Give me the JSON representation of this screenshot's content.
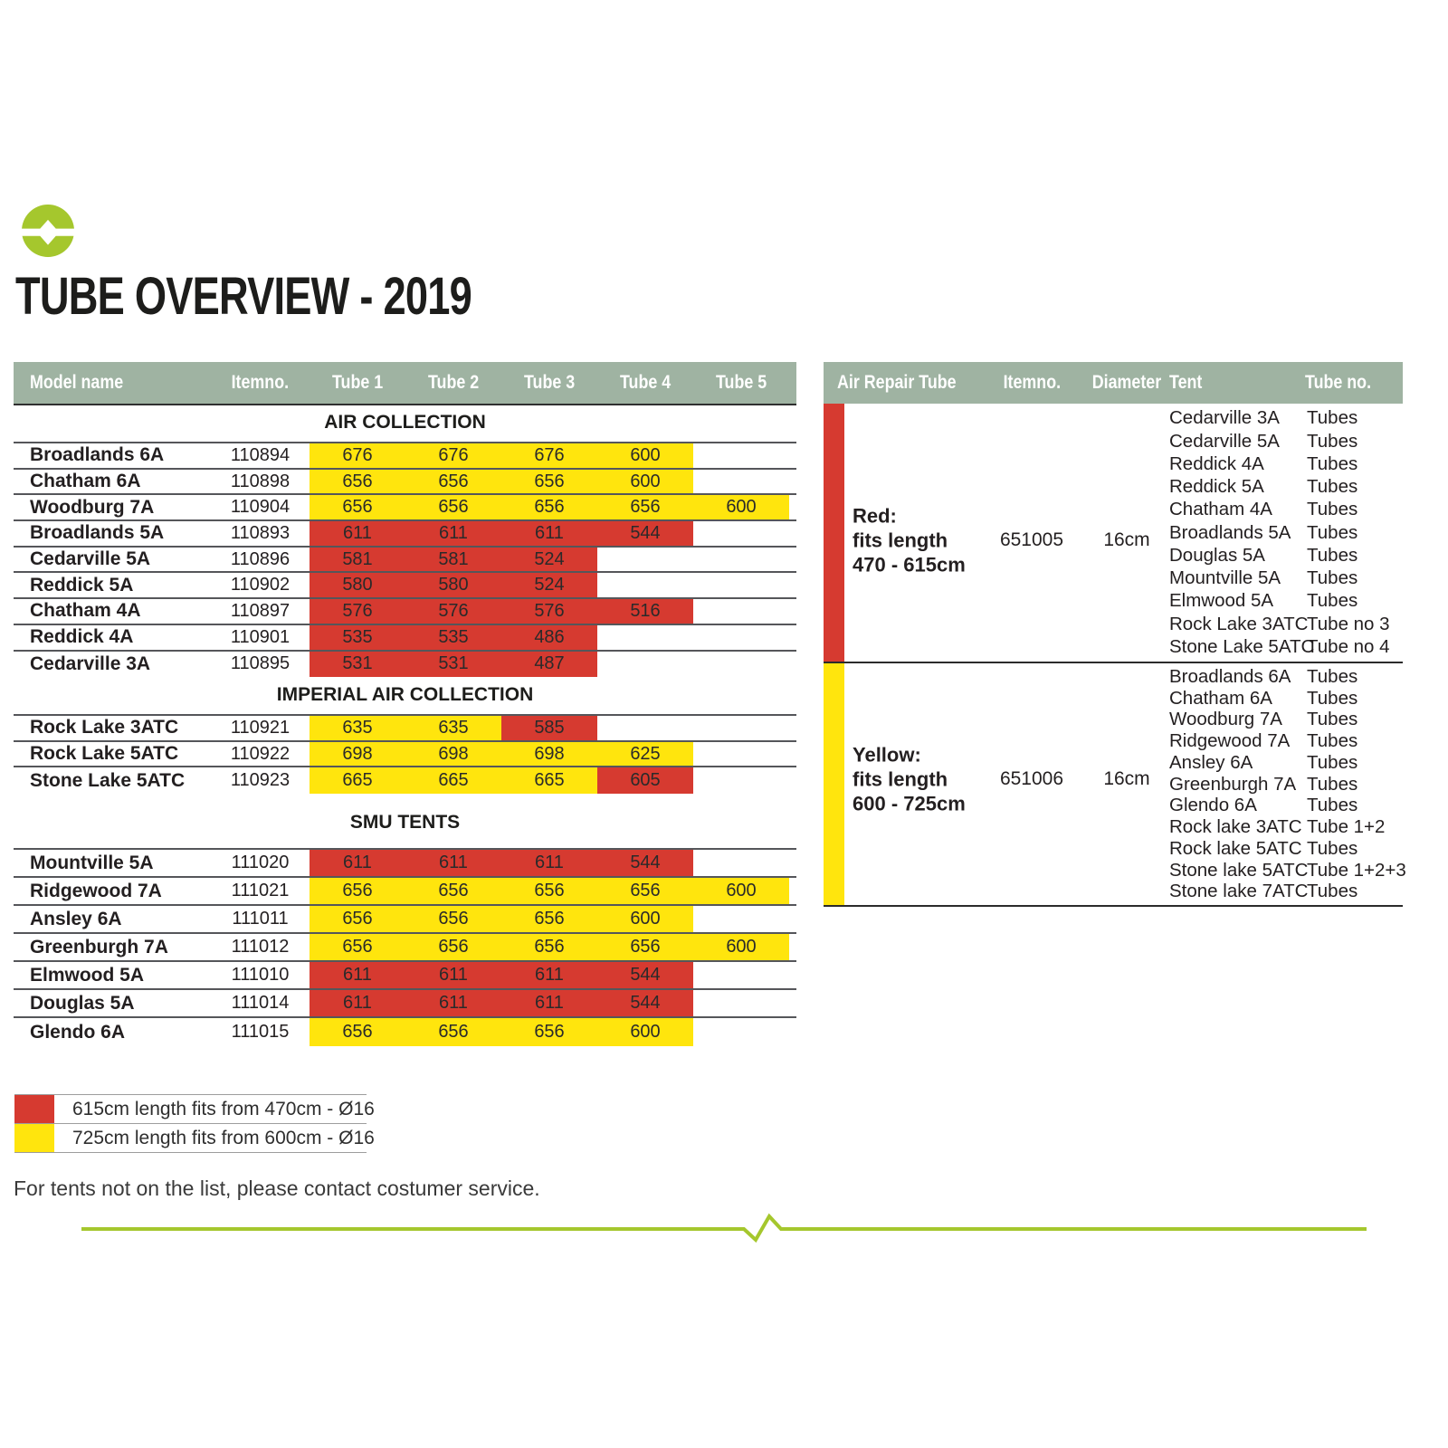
{
  "title": "TUBE OVERVIEW - 2019",
  "logo": {
    "name": "brand-logo"
  },
  "colors": {
    "sage": "#9fb3a2",
    "yellow": "#ffe50d",
    "red": "#d63a30",
    "lime": "#a5c72d",
    "text": "#231f20"
  },
  "left_table": {
    "headers": [
      "Model name",
      "Itemno.",
      "Tube 1",
      "Tube 2",
      "Tube 3",
      "Tube 4",
      "Tube 5"
    ],
    "sections": [
      {
        "name": "AIR COLLECTION",
        "rows": [
          {
            "model": "Broadlands 6A",
            "itemno": "110894",
            "tubes": [
              {
                "value": "676",
                "color": "yellow"
              },
              {
                "value": "676",
                "color": "yellow"
              },
              {
                "value": "676",
                "color": "yellow"
              },
              {
                "value": "600",
                "color": "yellow"
              }
            ]
          },
          {
            "model": "Chatham 6A",
            "itemno": "110898",
            "tubes": [
              {
                "value": "656",
                "color": "yellow"
              },
              {
                "value": "656",
                "color": "yellow"
              },
              {
                "value": "656",
                "color": "yellow"
              },
              {
                "value": "600",
                "color": "yellow"
              }
            ]
          },
          {
            "model": "Woodburg 7A",
            "itemno": "110904",
            "tubes": [
              {
                "value": "656",
                "color": "yellow"
              },
              {
                "value": "656",
                "color": "yellow"
              },
              {
                "value": "656",
                "color": "yellow"
              },
              {
                "value": "656",
                "color": "yellow"
              },
              {
                "value": "600",
                "color": "yellow"
              }
            ]
          },
          {
            "model": "Broadlands 5A",
            "itemno": "110893",
            "tubes": [
              {
                "value": "611",
                "color": "red"
              },
              {
                "value": "611",
                "color": "red"
              },
              {
                "value": "611",
                "color": "red"
              },
              {
                "value": "544",
                "color": "red"
              }
            ]
          },
          {
            "model": "Cedarville 5A",
            "itemno": "110896",
            "tubes": [
              {
                "value": "581",
                "color": "red"
              },
              {
                "value": "581",
                "color": "red"
              },
              {
                "value": "524",
                "color": "red"
              }
            ]
          },
          {
            "model": "Reddick 5A",
            "itemno": "110902",
            "tubes": [
              {
                "value": "580",
                "color": "red"
              },
              {
                "value": "580",
                "color": "red"
              },
              {
                "value": "524",
                "color": "red"
              }
            ]
          },
          {
            "model": "Chatham 4A",
            "itemno": "110897",
            "tubes": [
              {
                "value": "576",
                "color": "red"
              },
              {
                "value": "576",
                "color": "red"
              },
              {
                "value": "576",
                "color": "red"
              },
              {
                "value": "516",
                "color": "red"
              }
            ]
          },
          {
            "model": "Reddick 4A",
            "itemno": "110901",
            "tubes": [
              {
                "value": "535",
                "color": "red"
              },
              {
                "value": "535",
                "color": "red"
              },
              {
                "value": "486",
                "color": "red"
              }
            ]
          },
          {
            "model": "Cedarville 3A",
            "itemno": "110895",
            "tubes": [
              {
                "value": "531",
                "color": "red"
              },
              {
                "value": "531",
                "color": "red"
              },
              {
                "value": "487",
                "color": "red"
              }
            ]
          }
        ]
      },
      {
        "name": "IMPERIAL AIR COLLECTION",
        "rows": [
          {
            "model": "Rock Lake 3ATC",
            "itemno": "110921",
            "tubes": [
              {
                "value": "635",
                "color": "yellow"
              },
              {
                "value": "635",
                "color": "yellow"
              },
              {
                "value": "585",
                "color": "red"
              }
            ]
          },
          {
            "model": "Rock Lake 5ATC",
            "itemno": "110922",
            "tubes": [
              {
                "value": "698",
                "color": "yellow"
              },
              {
                "value": "698",
                "color": "yellow"
              },
              {
                "value": "698",
                "color": "yellow"
              },
              {
                "value": "625",
                "color": "yellow"
              }
            ]
          },
          {
            "model": "Stone Lake 5ATC",
            "itemno": "110923",
            "tubes": [
              {
                "value": "665",
                "color": "yellow"
              },
              {
                "value": "665",
                "color": "yellow"
              },
              {
                "value": "665",
                "color": "yellow"
              },
              {
                "value": "605",
                "color": "red"
              }
            ]
          }
        ]
      },
      {
        "name": "SMU TENTS",
        "rows": [
          {
            "model": "Mountville 5A",
            "itemno": "111020",
            "tubes": [
              {
                "value": "611",
                "color": "red"
              },
              {
                "value": "611",
                "color": "red"
              },
              {
                "value": "611",
                "color": "red"
              },
              {
                "value": "544",
                "color": "red"
              }
            ]
          },
          {
            "model": "Ridgewood 7A",
            "itemno": "111021",
            "tubes": [
              {
                "value": "656",
                "color": "yellow"
              },
              {
                "value": "656",
                "color": "yellow"
              },
              {
                "value": "656",
                "color": "yellow"
              },
              {
                "value": "656",
                "color": "yellow"
              },
              {
                "value": "600",
                "color": "yellow"
              }
            ]
          },
          {
            "model": "Ansley 6A",
            "itemno": "111011",
            "tubes": [
              {
                "value": "656",
                "color": "yellow"
              },
              {
                "value": "656",
                "color": "yellow"
              },
              {
                "value": "656",
                "color": "yellow"
              },
              {
                "value": "600",
                "color": "yellow"
              }
            ]
          },
          {
            "model": "Greenburgh 7A",
            "itemno": "111012",
            "tubes": [
              {
                "value": "656",
                "color": "yellow"
              },
              {
                "value": "656",
                "color": "yellow"
              },
              {
                "value": "656",
                "color": "yellow"
              },
              {
                "value": "656",
                "color": "yellow"
              },
              {
                "value": "600",
                "color": "yellow"
              }
            ]
          },
          {
            "model": "Elmwood 5A",
            "itemno": "111010",
            "tubes": [
              {
                "value": "611",
                "color": "red"
              },
              {
                "value": "611",
                "color": "red"
              },
              {
                "value": "611",
                "color": "red"
              },
              {
                "value": "544",
                "color": "red"
              }
            ]
          },
          {
            "model": "Douglas 5A",
            "itemno": "111014",
            "tubes": [
              {
                "value": "611",
                "color": "red"
              },
              {
                "value": "611",
                "color": "red"
              },
              {
                "value": "611",
                "color": "red"
              },
              {
                "value": "544",
                "color": "red"
              }
            ]
          },
          {
            "model": "Glendo 6A",
            "itemno": "111015",
            "tubes": [
              {
                "value": "656",
                "color": "yellow"
              },
              {
                "value": "656",
                "color": "yellow"
              },
              {
                "value": "656",
                "color": "yellow"
              },
              {
                "value": "600",
                "color": "yellow"
              }
            ]
          }
        ]
      }
    ]
  },
  "right_table": {
    "headers": [
      "Air Repair Tube",
      "Itemno.",
      "Diameter",
      "Tent",
      "Tube no."
    ],
    "groups": [
      {
        "color": "red",
        "label_lines": [
          "Red:",
          "fits length",
          "470 - 615cm"
        ],
        "itemno": "651005",
        "diameter": "16cm",
        "tents": [
          {
            "tent": "Cedarville 3A",
            "tube_no": "Tubes"
          },
          {
            "tent": "Cedarville 5A",
            "tube_no": "Tubes"
          },
          {
            "tent": "Reddick 4A",
            "tube_no": "Tubes"
          },
          {
            "tent": "Reddick 5A",
            "tube_no": "Tubes"
          },
          {
            "tent": "Chatham 4A",
            "tube_no": "Tubes"
          },
          {
            "tent": "Broadlands 5A",
            "tube_no": "Tubes"
          },
          {
            "tent": "Douglas 5A",
            "tube_no": "Tubes"
          },
          {
            "tent": "Mountville 5A",
            "tube_no": "Tubes"
          },
          {
            "tent": "Elmwood 5A",
            "tube_no": "Tubes"
          },
          {
            "tent": "Rock Lake 3ATC",
            "tube_no": "Tube no 3"
          },
          {
            "tent": "Stone Lake 5ATC",
            "tube_no": "Tube no 4"
          }
        ]
      },
      {
        "color": "yellow",
        "label_lines": [
          "Yellow:",
          "fits length",
          "600 - 725cm"
        ],
        "itemno": "651006",
        "diameter": "16cm",
        "tents": [
          {
            "tent": "Broadlands 6A",
            "tube_no": "Tubes"
          },
          {
            "tent": "Chatham 6A",
            "tube_no": "Tubes"
          },
          {
            "tent": "Woodburg 7A",
            "tube_no": "Tubes"
          },
          {
            "tent": "Ridgewood 7A",
            "tube_no": "Tubes"
          },
          {
            "tent": "Ansley 6A",
            "tube_no": "Tubes"
          },
          {
            "tent": "Greenburgh 7A",
            "tube_no": "Tubes"
          },
          {
            "tent": "Glendo 6A",
            "tube_no": "Tubes"
          },
          {
            "tent": "Rock lake 3ATC",
            "tube_no": "Tube 1+2"
          },
          {
            "tent": "Rock lake 5ATC",
            "tube_no": "Tubes"
          },
          {
            "tent": "Stone lake 5ATC",
            "tube_no": "Tube 1+2+3"
          },
          {
            "tent": "Stone lake 7ATC",
            "tube_no": "Tubes"
          }
        ]
      }
    ]
  },
  "legend": {
    "rows": [
      {
        "color": "red",
        "label": "615cm length fits from 470cm - Ø16"
      },
      {
        "color": "yellow",
        "label": "725cm length fits from 600cm - Ø16"
      }
    ]
  },
  "footer": "For tents not on the list, please contact costumer service."
}
